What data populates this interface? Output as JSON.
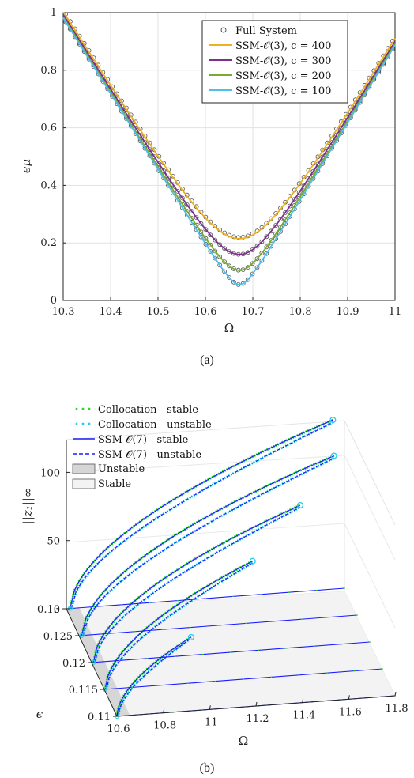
{
  "chart_data": [
    {
      "type": "line",
      "panel": "(a)",
      "caption": "(a)",
      "xlabel": "Ω",
      "ylabel": "ϵμ",
      "xlim": [
        10.3,
        11
      ],
      "ylim": [
        0,
        1
      ],
      "xticks": [
        "10.3",
        "10.4",
        "10.5",
        "10.6",
        "10.7",
        "10.8",
        "10.9",
        "11"
      ],
      "yticks": [
        "0",
        "0.2",
        "0.4",
        "0.6",
        "0.8",
        "1"
      ],
      "grid": true,
      "legend_position": "top-right",
      "markers": {
        "name": "Full System",
        "style": "open circle",
        "color": "#555555"
      },
      "series": [
        {
          "name": "SSM-𝒪(3), c = 400",
          "color": "#EDB120",
          "min_y": 0.215,
          "x": [
            10.3,
            10.4,
            10.5,
            10.6,
            10.66,
            10.67,
            10.68,
            10.7,
            10.8,
            10.9,
            11
          ],
          "y": [
            1.0,
            0.78,
            0.52,
            0.28,
            0.216,
            0.215,
            0.216,
            0.24,
            0.45,
            0.67,
            0.9
          ]
        },
        {
          "name": "SSM-𝒪(3), c = 300",
          "color": "#7E2F8E",
          "min_y": 0.16,
          "x": [
            10.3,
            10.4,
            10.5,
            10.6,
            10.66,
            10.67,
            10.68,
            10.7,
            10.8,
            10.9,
            11
          ],
          "y": [
            1.0,
            0.77,
            0.5,
            0.23,
            0.162,
            0.16,
            0.162,
            0.2,
            0.43,
            0.66,
            0.89
          ]
        },
        {
          "name": "SSM-𝒪(3), c = 200",
          "color": "#77AC30",
          "min_y": 0.105,
          "x": [
            10.3,
            10.4,
            10.5,
            10.6,
            10.66,
            10.67,
            10.68,
            10.7,
            10.8,
            10.9,
            11
          ],
          "y": [
            1.0,
            0.765,
            0.49,
            0.2,
            0.108,
            0.105,
            0.108,
            0.17,
            0.42,
            0.655,
            0.89
          ]
        },
        {
          "name": "SSM-𝒪(3), c = 100",
          "color": "#4DBEEE",
          "min_y": 0.055,
          "x": [
            10.3,
            10.4,
            10.5,
            10.6,
            10.66,
            10.67,
            10.68,
            10.7,
            10.8,
            10.9,
            11
          ],
          "y": [
            1.0,
            0.76,
            0.48,
            0.18,
            0.06,
            0.055,
            0.06,
            0.14,
            0.41,
            0.65,
            0.88
          ]
        }
      ]
    },
    {
      "type": "line",
      "panel": "(b)",
      "caption": "(b)",
      "xlabel": "Ω",
      "ylabel": "||z₁||∞",
      "zlabel": "ϵ",
      "xlim": [
        10.6,
        11.8
      ],
      "ylim": [
        0,
        120
      ],
      "elim": [
        0.11,
        0.13
      ],
      "xticks": [
        "10.6",
        "10.8",
        "11",
        "11.2",
        "11.4",
        "11.6",
        "11.8"
      ],
      "yticks": [
        "0",
        "50",
        "100"
      ],
      "eticks": [
        "0.13",
        "0.125",
        "0.12",
        "0.115",
        "0.11"
      ],
      "legend_position": "top-left",
      "legend": [
        {
          "label": "Collocation - stable",
          "color": "#22DD22",
          "style": "dots"
        },
        {
          "label": "Collocation - unstable",
          "color": "#22CCEE",
          "style": "dots"
        },
        {
          "label": "SSM-𝒪(7) - stable",
          "color": "#1a1aff",
          "style": "solid"
        },
        {
          "label": "SSM-𝒪(7) - unstable",
          "color": "#1a1aff",
          "style": "dashed"
        },
        {
          "label": "Unstable",
          "color": "#d6d6d6",
          "style": "patch"
        },
        {
          "label": "Stable",
          "color": "#f3f3f3",
          "style": "patch"
        }
      ],
      "branches": [
        {
          "epsilon": 0.11,
          "omega_peak": 10.92,
          "amp_peak": 54
        },
        {
          "epsilon": 0.115,
          "omega_peak": 11.24,
          "amp_peak": 86
        },
        {
          "epsilon": 0.12,
          "omega_peak": 11.5,
          "amp_peak": 104
        },
        {
          "epsilon": 0.125,
          "omega_peak": 11.7,
          "amp_peak": 118
        },
        {
          "epsilon": 0.13,
          "omega_peak": 11.75,
          "amp_peak": 124
        }
      ]
    }
  ]
}
